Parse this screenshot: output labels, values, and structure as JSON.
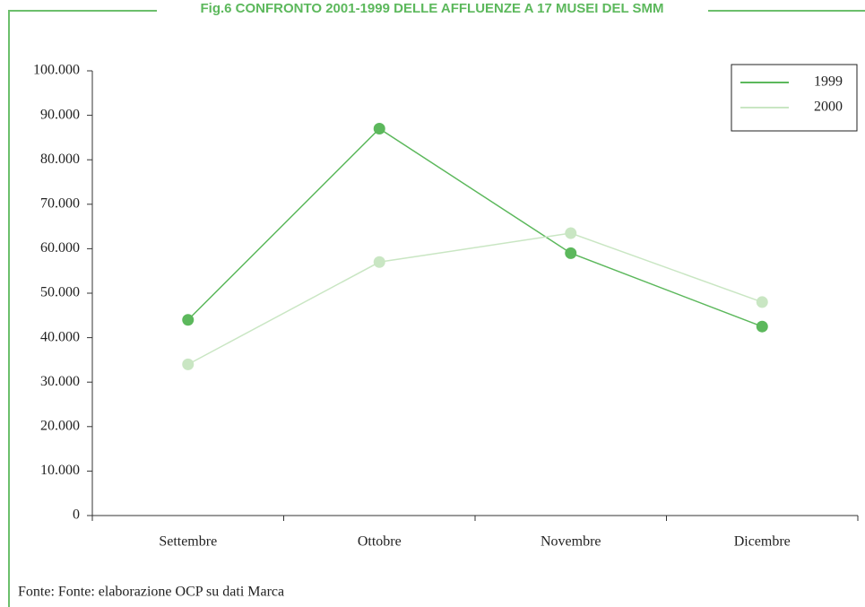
{
  "chart_data": {
    "type": "line",
    "title": "Fig.6 CONFRONTO 2001-1999 DELLE AFFLUENZE A 17 MUSEI DEL SMM",
    "source": "Fonte: Fonte: elaborazione OCP su dati Marca",
    "categories": [
      "Settembre",
      "Ottobre",
      "Novembre",
      "Dicembre"
    ],
    "series": [
      {
        "name": "1999",
        "color": "#5cb85c",
        "values": [
          44000,
          87000,
          59000,
          42500
        ]
      },
      {
        "name": "2000",
        "color": "#c9e6c3",
        "values": [
          34000,
          57000,
          63500,
          48000
        ]
      }
    ],
    "ylim": [
      0,
      100000
    ],
    "yticks": [
      0,
      {
        "value": 10000,
        "label": "10.000"
      },
      {
        "value": 20000,
        "label": "20.000"
      },
      {
        "value": 30000,
        "label": "30.000"
      },
      {
        "value": 40000,
        "label": "40.000"
      },
      {
        "value": 50000,
        "label": "50.000"
      },
      {
        "value": 60000,
        "label": "60.000"
      },
      {
        "value": 70000,
        "label": "70.000"
      },
      {
        "value": 80000,
        "label": "80.000"
      },
      {
        "value": 90000,
        "label": "90.000"
      },
      {
        "value": 100000,
        "label": "100.000"
      }
    ],
    "legend": "top-right"
  }
}
